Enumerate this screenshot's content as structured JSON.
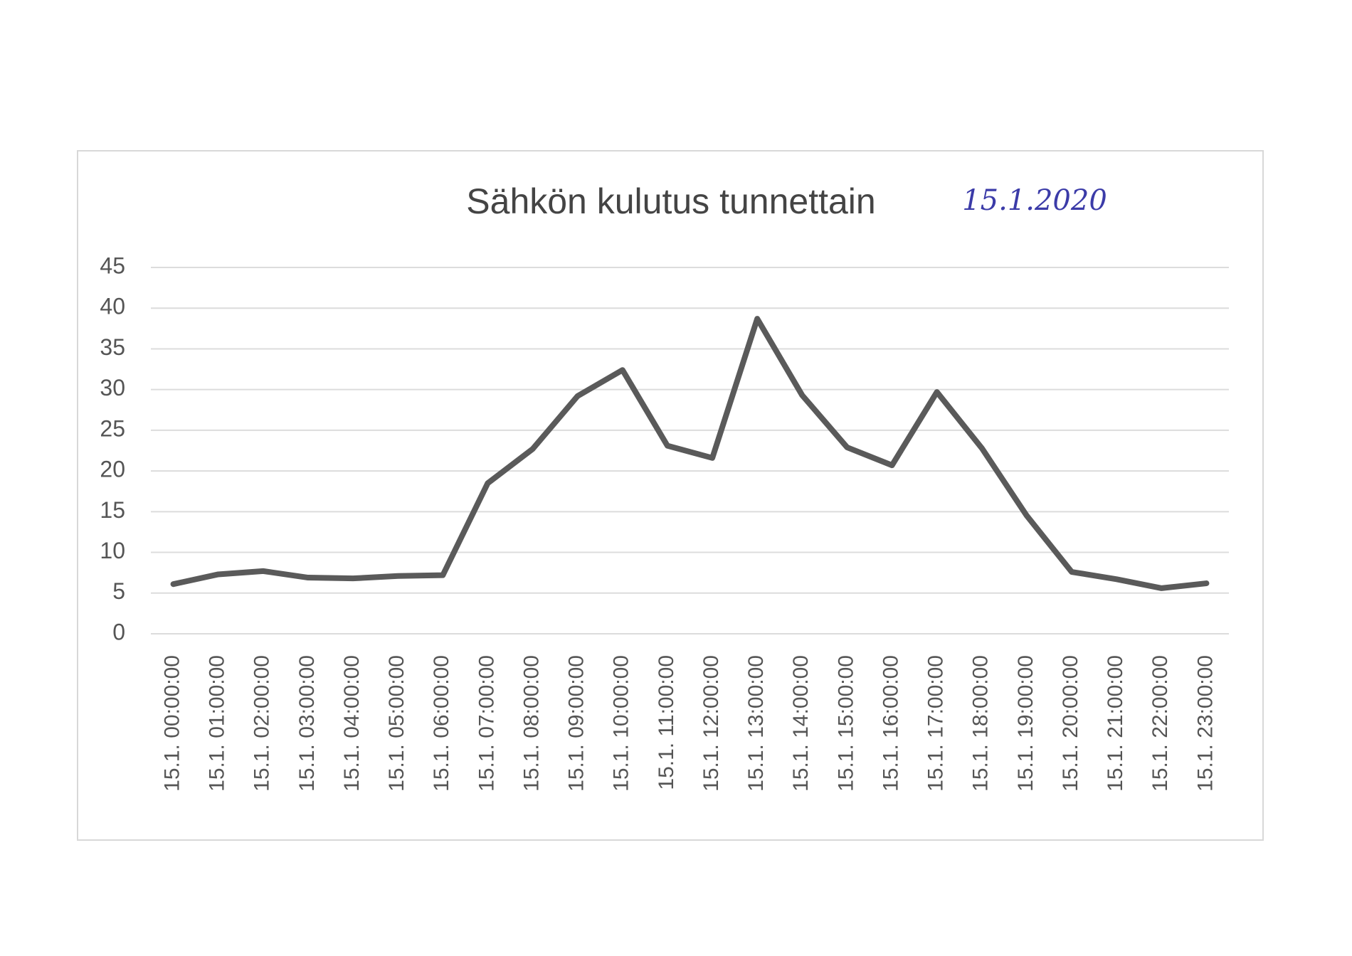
{
  "chart_data": {
    "type": "line",
    "title": "Sähkön kulutus tunnettain",
    "annotation": "15.1.2020",
    "categories": [
      "15.1. 00:00:00",
      "15.1. 01:00:00",
      "15.1. 02:00:00",
      "15.1. 03:00:00",
      "15.1. 04:00:00",
      "15.1. 05:00:00",
      "15.1. 06:00:00",
      "15.1. 07:00:00",
      "15.1. 08:00:00",
      "15.1. 09:00:00",
      "15.1. 10:00:00",
      "15.1. 11:00:00",
      "15.1. 12:00:00",
      "15.1. 13:00:00",
      "15.1. 14:00:00",
      "15.1. 15:00:00",
      "15.1. 16:00:00",
      "15.1. 17:00:00",
      "15.1. 18:00:00",
      "15.1. 19:00:00",
      "15.1. 20:00:00",
      "15.1. 21:00:00",
      "15.1. 22:00:00",
      "15.1. 23:00:00"
    ],
    "values": [
      6.1,
      7.3,
      7.7,
      6.9,
      6.8,
      7.1,
      7.2,
      18.5,
      22.7,
      29.2,
      32.4,
      23.1,
      21.6,
      38.7,
      29.3,
      22.9,
      20.7,
      29.7,
      22.8,
      14.5,
      7.6,
      6.7,
      5.6,
      6.2
    ],
    "color": "#5a5a5a",
    "ylim": [
      0,
      45
    ],
    "yticks": [
      0,
      5,
      10,
      15,
      20,
      25,
      30,
      35,
      40,
      45
    ],
    "grid": true
  }
}
